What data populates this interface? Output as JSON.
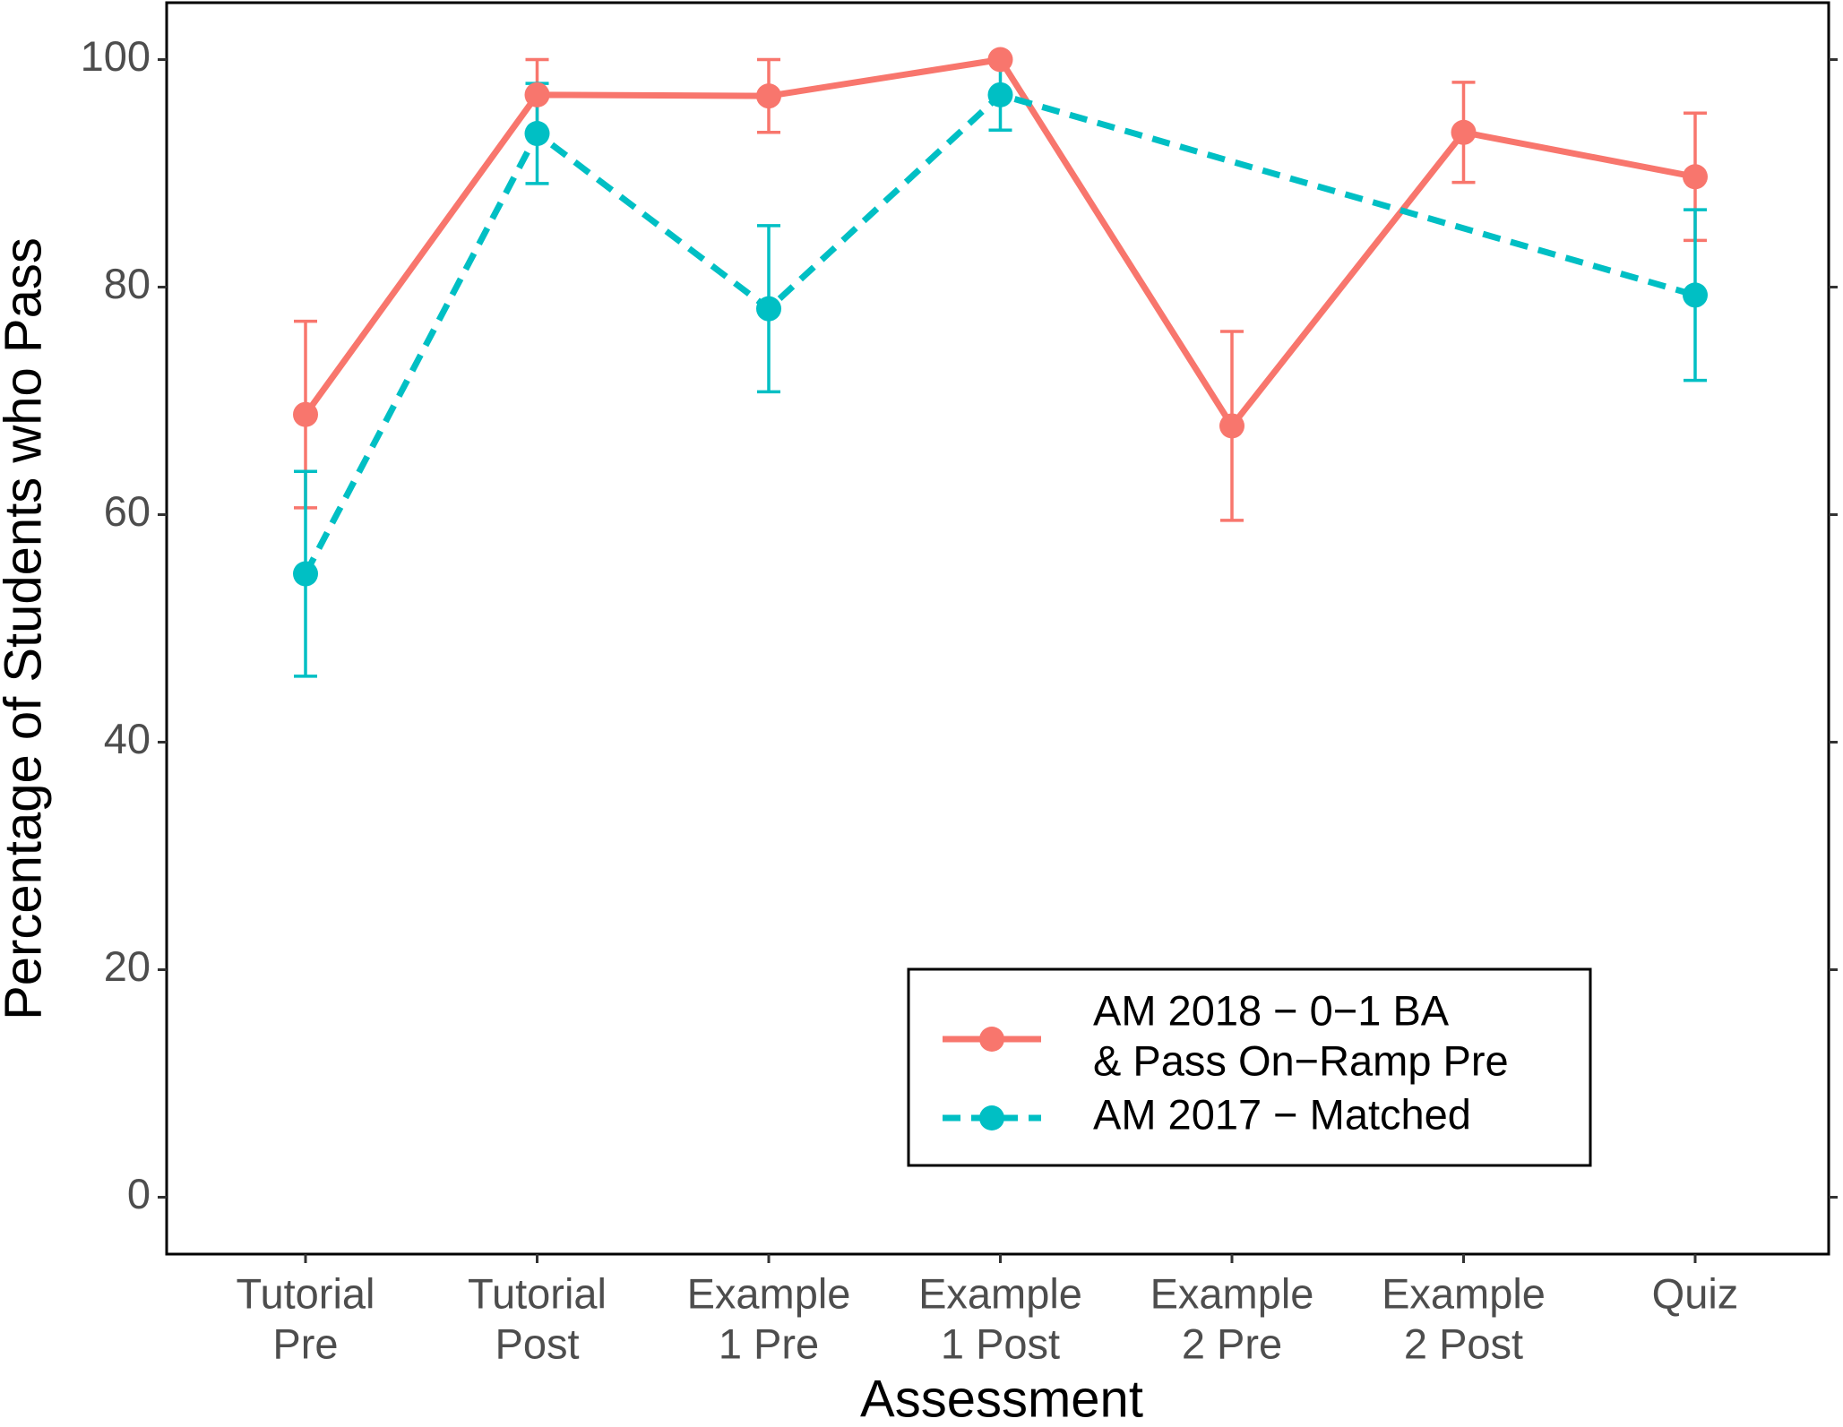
{
  "chart_data": {
    "type": "line",
    "x_label": "Assessment",
    "y_label": "Percentage of Students who Pass",
    "categories": [
      [
        "Tutorial",
        "Pre"
      ],
      [
        "Tutorial",
        "Post"
      ],
      [
        "Example",
        "1 Pre"
      ],
      [
        "Example",
        "1 Post"
      ],
      [
        "Example",
        "2 Pre"
      ],
      [
        "Example",
        "2 Post"
      ],
      [
        "Quiz"
      ]
    ],
    "series": [
      {
        "name": [
          "AM 2018 − 0−1 BA",
          "& Pass On−Ramp Pre"
        ],
        "color": "#f8766d",
        "dash": false,
        "values": [
          68.8,
          96.9,
          96.8,
          100,
          67.8,
          93.6,
          89.7
        ],
        "errors": [
          8.2,
          3.1,
          3.2,
          0,
          8.3,
          4.4,
          5.6
        ]
      },
      {
        "name": [
          "AM 2017 − Matched"
        ],
        "color": "#00bfc4",
        "dash": true,
        "values": [
          54.8,
          93.5,
          78.1,
          96.9,
          null,
          null,
          79.3
        ],
        "errors": [
          9,
          4.4,
          7.3,
          3.1,
          null,
          null,
          7.5
        ]
      }
    ],
    "connect_gaps": true,
    "ylim": [
      -5,
      105
    ],
    "yticks": [
      0,
      20,
      40,
      60,
      80,
      100
    ],
    "legend": "bottom-right",
    "grid": false
  }
}
